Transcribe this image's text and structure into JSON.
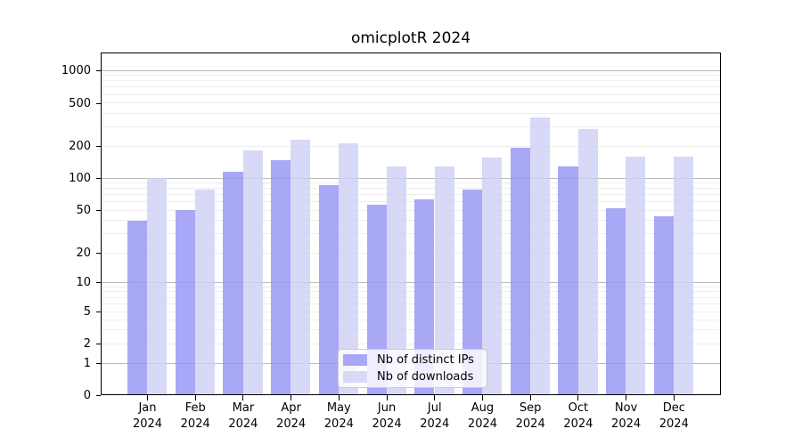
{
  "title": "omicplotR 2024",
  "chart_data": {
    "type": "bar",
    "title": "omicplotR 2024",
    "xlabel": "",
    "ylabel": "",
    "yscale": "log-like",
    "ylim": [
      0,
      1400
    ],
    "grid": true,
    "yticks": [
      0,
      1,
      2,
      5,
      10,
      20,
      50,
      100,
      200,
      500,
      1000
    ],
    "categories": [
      "Jan 2024",
      "Feb 2024",
      "Mar 2024",
      "Apr 2024",
      "May 2024",
      "Jun 2024",
      "Jul 2024",
      "Aug 2024",
      "Sep 2024",
      "Oct 2024",
      "Nov 2024",
      "Dec 2024"
    ],
    "series": [
      {
        "name": "Nb of distinct IPs",
        "color": "#a8a8f7",
        "values": [
          40,
          50,
          116,
          149,
          86,
          57,
          64,
          78,
          193,
          130,
          52,
          44
        ]
      },
      {
        "name": "Nb of downloads",
        "color": "#d8d8f7",
        "values": [
          100,
          78,
          183,
          228,
          215,
          130,
          130,
          158,
          368,
          290,
          159,
          161
        ]
      }
    ],
    "legend": {
      "position": "inside-bottom-center",
      "items": [
        "Nb of distinct IPs",
        "Nb of downloads"
      ]
    }
  }
}
